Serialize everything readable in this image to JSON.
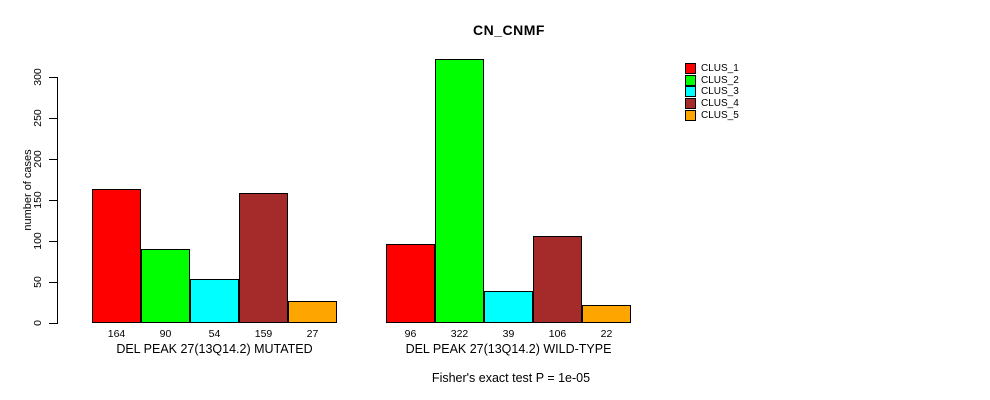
{
  "title": "CN_CNMF",
  "y_axis": {
    "label": "number of cases",
    "ticks": [
      0,
      50,
      100,
      150,
      200,
      250,
      300
    ]
  },
  "footer": "Fisher's exact test P = 1e-05",
  "legend": {
    "items": [
      {
        "label": "CLUS_1",
        "color": "#FF0000"
      },
      {
        "label": "CLUS_2",
        "color": "#00FF00"
      },
      {
        "label": "CLUS_3",
        "color": "#00FFFF"
      },
      {
        "label": "CLUS_4",
        "color": "#A52A2A"
      },
      {
        "label": "CLUS_5",
        "color": "#FFA500"
      }
    ]
  },
  "chart_data": {
    "type": "bar",
    "title": "CN_CNMF",
    "xlabel": "",
    "ylabel": "number of cases",
    "ylim": [
      0,
      330
    ],
    "yticks": [
      0,
      50,
      100,
      150,
      200,
      250,
      300
    ],
    "grid": false,
    "legend_position": "right",
    "categories": [
      "DEL PEAK 27(13Q14.2) MUTATED",
      "DEL PEAK 27(13Q14.2) WILD-TYPE"
    ],
    "series": [
      {
        "name": "CLUS_1",
        "color": "#FF0000",
        "values": [
          164,
          96
        ]
      },
      {
        "name": "CLUS_2",
        "color": "#00FF00",
        "values": [
          90,
          322
        ]
      },
      {
        "name": "CLUS_3",
        "color": "#00FFFF",
        "values": [
          54,
          39
        ]
      },
      {
        "name": "CLUS_4",
        "color": "#A52A2A",
        "values": [
          159,
          106
        ]
      },
      {
        "name": "CLUS_5",
        "color": "#FFA500",
        "values": [
          27,
          22
        ]
      }
    ],
    "bar_value_labels": [
      [
        164,
        90,
        54,
        159,
        27
      ],
      [
        96,
        322,
        39,
        106,
        22
      ]
    ],
    "annotation": "Fisher's exact test P = 1e-05"
  }
}
